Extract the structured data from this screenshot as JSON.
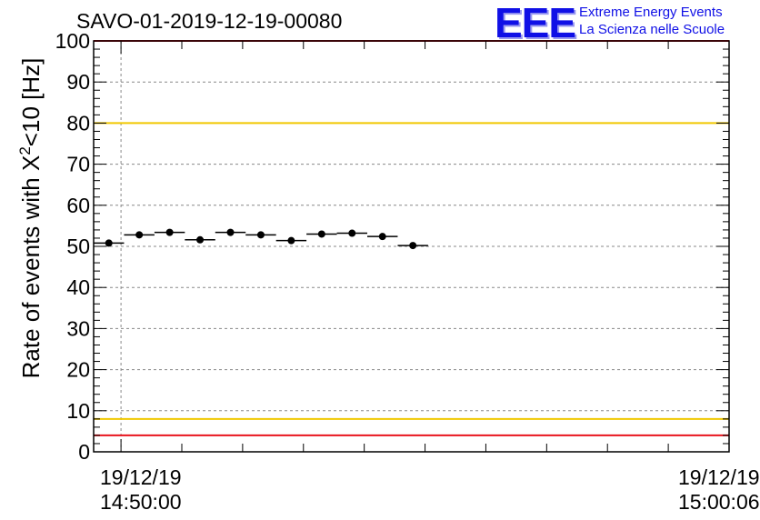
{
  "title": "SAVO-01-2019-12-19-00080",
  "logo": {
    "mark": "EEE",
    "line1": "Extreme Energy Events",
    "line2": "La Scienza nelle Scuole",
    "color": "#1010e6"
  },
  "chart_data": {
    "type": "scatter",
    "title": "SAVO-01-2019-12-19-00080",
    "ylabel_prefix": "Rate of events with ",
    "ylabel_symbol": "X",
    "ylabel_sup": "2",
    "ylabel_suffix": "<10 [Hz]",
    "ylim": [
      0,
      100
    ],
    "yticks": [
      "0",
      "10",
      "20",
      "30",
      "40",
      "50",
      "60",
      "70",
      "80",
      "90",
      "100"
    ],
    "xlim_minutes": [
      -0.45,
      10.0
    ],
    "xtick_labels": [
      {
        "date": "19/12/19",
        "time": "14:50:00"
      },
      {
        "date": "19/12/19",
        "time": "15:00:06"
      }
    ],
    "grid": true,
    "series": [
      {
        "name": "rate",
        "x": [
          -0.2,
          0.3,
          0.8,
          1.3,
          1.8,
          2.3,
          2.8,
          3.3,
          3.8,
          4.3,
          4.8
        ],
        "x_halfwidth": 0.25,
        "values": [
          50.8,
          52.8,
          53.4,
          51.6,
          53.4,
          52.8,
          51.4,
          53.0,
          53.2,
          52.4,
          50.2
        ]
      }
    ],
    "reference_lines": [
      {
        "y": 100,
        "color": "#e8141e"
      },
      {
        "y": 80,
        "color": "#f0c800"
      },
      {
        "y": 8,
        "color": "#f0c800"
      },
      {
        "y": 4,
        "color": "#e8141e"
      }
    ]
  }
}
